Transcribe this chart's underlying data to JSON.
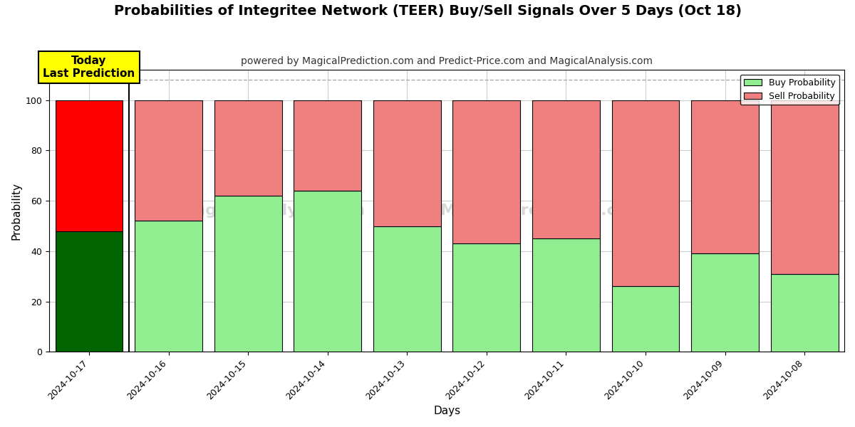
{
  "title": "Probabilities of Integritee Network (TEER) Buy/Sell Signals Over 5 Days (Oct 18)",
  "subtitle": "powered by MagicalPrediction.com and Predict-Price.com and MagicalAnalysis.com",
  "xlabel": "Days",
  "ylabel": "Probability",
  "dates": [
    "2024-10-17",
    "2024-10-16",
    "2024-10-15",
    "2024-10-14",
    "2024-10-13",
    "2024-10-12",
    "2024-10-11",
    "2024-10-10",
    "2024-10-09",
    "2024-10-08"
  ],
  "buy_values": [
    48,
    52,
    62,
    64,
    50,
    43,
    45,
    26,
    39,
    31
  ],
  "sell_values": [
    52,
    48,
    38,
    36,
    50,
    57,
    55,
    74,
    61,
    69
  ],
  "today_buy_color": "#006400",
  "today_sell_color": "#FF0000",
  "normal_buy_color": "#90EE90",
  "normal_sell_color": "#F08080",
  "bar_edge_color": "#000000",
  "bar_width": 0.85,
  "ylim": [
    0,
    112
  ],
  "yticks": [
    0,
    20,
    40,
    60,
    80,
    100
  ],
  "grid_color": "#cccccc",
  "background_color": "#ffffff",
  "annotation_text": "Today\nLast Prediction",
  "annotation_bg_color": "#FFFF00",
  "annotation_text_color": "#000000",
  "legend_buy_label": "Buy Probability",
  "legend_sell_label": "Sell Probability",
  "dashed_line_y": 108,
  "dashed_line_color": "#aaaaaa",
  "title_fontsize": 14,
  "subtitle_fontsize": 10,
  "axis_label_fontsize": 11,
  "tick_fontsize": 9
}
